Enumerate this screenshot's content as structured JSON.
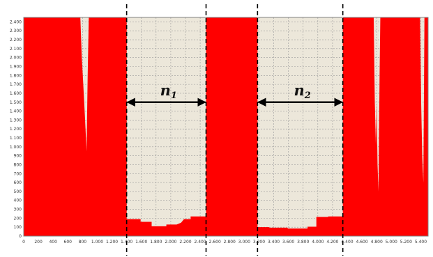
{
  "chart_data": {
    "type": "area",
    "title": "",
    "xlabel": "",
    "ylabel": "",
    "xlim": [
      0,
      5500
    ],
    "ylim": [
      0,
      2450
    ],
    "grid": true,
    "x_ticks": [
      0,
      200,
      400,
      600,
      800,
      1000,
      1200,
      1400,
      1600,
      1800,
      2000,
      2200,
      2400,
      2600,
      2800,
      3000,
      3200,
      3400,
      3600,
      3800,
      4000,
      4200,
      4400,
      4600,
      4800,
      5000,
      5200,
      5400
    ],
    "x_tick_labels": [
      "0",
      "200",
      "400",
      "600",
      "800",
      "1.000",
      "1.200",
      "1.400",
      "1.600",
      "1.800",
      "2.000",
      "2.200",
      "2.400",
      "2.600",
      "2.800",
      "3.000",
      "3.200",
      "3.400",
      "3.600",
      "3.800",
      "4.000",
      "4.200",
      "4.400",
      "4.600",
      "4.800",
      "5.000",
      "5.200",
      "5.400"
    ],
    "y_ticks": [
      0,
      100,
      200,
      300,
      400,
      500,
      600,
      700,
      800,
      900,
      1000,
      1100,
      1200,
      1300,
      1400,
      1500,
      1600,
      1700,
      1800,
      1900,
      2000,
      2100,
      2200,
      2300,
      2400
    ],
    "y_tick_labels": [
      "0",
      "100",
      "200",
      "300",
      "400",
      "500",
      "600",
      "700",
      "800",
      "900",
      "1.000",
      "1.100",
      "1.200",
      "1.300",
      "1.400",
      "1.500",
      "1.600",
      "1.700",
      "1.800",
      "1.900",
      "2.000",
      "2.100",
      "2.200",
      "2.300",
      "2.400"
    ],
    "series": [
      {
        "color": "#ff0000",
        "points": [
          [
            0,
            2450
          ],
          [
            770,
            2450
          ],
          [
            790,
            2000
          ],
          [
            810,
            1700
          ],
          [
            835,
            1300
          ],
          [
            855,
            950
          ],
          [
            870,
            1800
          ],
          [
            885,
            2450
          ],
          [
            1400,
            2450
          ],
          [
            1400,
            190
          ],
          [
            1590,
            190
          ],
          [
            1590,
            160
          ],
          [
            1740,
            160
          ],
          [
            1740,
            110
          ],
          [
            1940,
            110
          ],
          [
            1940,
            130
          ],
          [
            2080,
            130
          ],
          [
            2140,
            150
          ],
          [
            2180,
            190
          ],
          [
            2270,
            190
          ],
          [
            2270,
            220
          ],
          [
            2480,
            220
          ],
          [
            2480,
            2450
          ],
          [
            3180,
            2450
          ],
          [
            3180,
            100
          ],
          [
            3340,
            100
          ],
          [
            3340,
            95
          ],
          [
            3590,
            95
          ],
          [
            3590,
            85
          ],
          [
            3860,
            85
          ],
          [
            3860,
            105
          ],
          [
            3980,
            105
          ],
          [
            3980,
            215
          ],
          [
            4140,
            215
          ],
          [
            4140,
            220
          ],
          [
            4340,
            220
          ],
          [
            4340,
            2450
          ],
          [
            4760,
            2450
          ],
          [
            4775,
            1500
          ],
          [
            4790,
            1000
          ],
          [
            4800,
            1500
          ],
          [
            4812,
            800
          ],
          [
            4825,
            500
          ],
          [
            4840,
            1800
          ],
          [
            4850,
            2450
          ],
          [
            5390,
            2450
          ],
          [
            5405,
            1500
          ],
          [
            5420,
            900
          ],
          [
            5435,
            600
          ],
          [
            5450,
            2450
          ],
          [
            5500,
            2450
          ]
        ]
      }
    ],
    "annotations": [
      {
        "label": "n",
        "subscript": "1",
        "x_from": 1400,
        "x_to": 2480,
        "y": 1500
      },
      {
        "label": "n",
        "subscript": "2",
        "x_from": 3180,
        "x_to": 4340,
        "y": 1500
      }
    ],
    "dividers_x": [
      1400,
      2480,
      3180,
      4340
    ]
  }
}
